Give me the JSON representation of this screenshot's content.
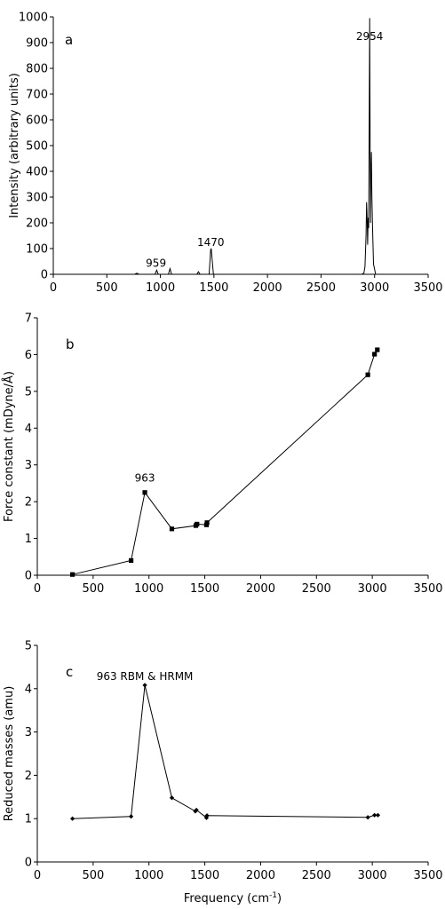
{
  "chart_data": [
    {
      "type": "line",
      "panel_label": "a",
      "ylabel": "Intensity (arbitrary units)",
      "xlabel": "",
      "xlim": [
        0,
        3500
      ],
      "ylim": [
        0,
        1000
      ],
      "xticks": [
        0,
        500,
        1000,
        1500,
        2000,
        2500,
        3000,
        3500
      ],
      "yticks": [
        0,
        100,
        200,
        300,
        400,
        500,
        600,
        700,
        800,
        900,
        1000
      ],
      "series": [
        {
          "x": [
            0,
            760,
            780,
            800,
            950,
            965,
            980,
            1075,
            1090,
            1105,
            1340,
            1355,
            1370,
            1455,
            1470,
            1475,
            1480,
            1495,
            2880,
            2900,
            2910,
            2920,
            2925,
            2930,
            2935,
            2940,
            2945,
            2950,
            2954,
            2958,
            2962,
            2966,
            2970,
            2975,
            2980,
            2990,
            3010,
            3500
          ],
          "values": [
            0,
            0,
            4,
            0,
            0,
            16,
            0,
            0,
            22,
            0,
            0,
            10,
            0,
            0,
            95,
            100,
            75,
            0,
            0,
            5,
            30,
            150,
            280,
            220,
            115,
            220,
            180,
            600,
            995,
            500,
            200,
            400,
            475,
            300,
            200,
            40,
            0,
            0
          ]
        }
      ],
      "annotations": [
        {
          "text": "959",
          "x": 959,
          "y": 30
        },
        {
          "text": "1470",
          "x": 1470,
          "y": 110
        },
        {
          "text": "2954",
          "x": 2954,
          "y": 910
        }
      ]
    },
    {
      "type": "line",
      "panel_label": "b",
      "ylabel": "Force constant (mDyne/Å)",
      "xlabel": "",
      "xlim": [
        0,
        3500
      ],
      "ylim": [
        0,
        7
      ],
      "xticks": [
        0,
        500,
        1000,
        1500,
        2000,
        2500,
        3000,
        3500
      ],
      "yticks": [
        0,
        1,
        2,
        3,
        4,
        5,
        6,
        7
      ],
      "marker": "square",
      "series": [
        {
          "x": [
            315,
            840,
            963,
            1205,
            1420,
            1430,
            1515,
            1520,
            2960,
            3020,
            3045
          ],
          "values": [
            0.02,
            0.4,
            2.25,
            1.26,
            1.35,
            1.39,
            1.37,
            1.43,
            5.45,
            6.01,
            6.13
          ]
        }
      ],
      "annotations": [
        {
          "text": "963",
          "x": 963,
          "y": 2.55
        }
      ]
    },
    {
      "type": "line",
      "panel_label": "c",
      "ylabel": "Reduced masses (amu)",
      "xlabel": "Frequency (cm-1)",
      "xlabel_main": "Frequency (cm",
      "xlabel_sup": "-1",
      "xlabel_close": ")",
      "xlim": [
        0,
        3500
      ],
      "ylim": [
        0,
        5
      ],
      "xticks": [
        0,
        500,
        1000,
        1500,
        2000,
        2500,
        3000,
        3500
      ],
      "yticks": [
        0,
        1,
        2,
        3,
        4,
        5
      ],
      "marker": "diamond",
      "series": [
        {
          "x": [
            315,
            840,
            963,
            1205,
            1415,
            1425,
            1515,
            1520,
            2960,
            3020,
            3050
          ],
          "values": [
            1.0,
            1.05,
            4.08,
            1.48,
            1.17,
            1.2,
            1.02,
            1.07,
            1.03,
            1.08,
            1.08
          ]
        }
      ],
      "annotations": [
        {
          "text": "963 RBM & HRMM",
          "x": 963,
          "y": 4.2
        }
      ]
    }
  ]
}
